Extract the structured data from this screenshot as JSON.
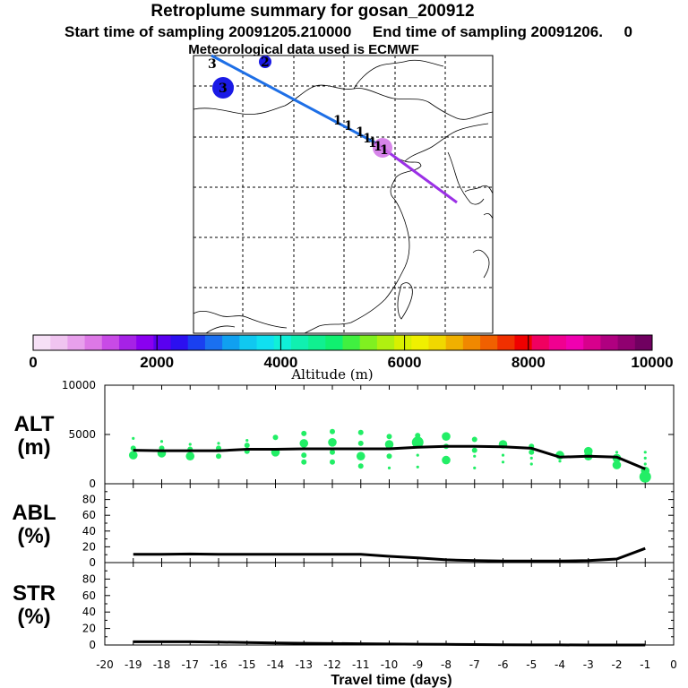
{
  "title": {
    "line1": "Retroplume summary for gosan_200912",
    "line2": "Start time of sampling 20091205.210000     End time of sampling 20091206.     0",
    "line3": "Meteorological data used is ECMWF"
  },
  "colors": {
    "altitude_series": "#22ee66",
    "line": "#000000",
    "traj_blue": "#1e6fe6",
    "traj_purple": "#9b30e6",
    "source_blue": "#1a1ae6"
  },
  "map": {
    "trajectory_labels": [
      "1",
      "1",
      "1",
      "1",
      "1",
      "1",
      "1"
    ],
    "source_labels": [
      "3",
      "2",
      "3"
    ]
  },
  "colorbar": {
    "label": "Altitude (m)",
    "tick_labels": [
      "0",
      "2000",
      "4000",
      "6000",
      "8000",
      "10000"
    ],
    "colors": [
      "#f6e0f6",
      "#f0c4f0",
      "#e8a0ec",
      "#dd78e6",
      "#c84ae6",
      "#a622e6",
      "#8a00f0",
      "#5a00f0",
      "#2c10f0",
      "#1a40f0",
      "#1a70f0",
      "#10a0f0",
      "#10c8f0",
      "#10e0f0",
      "#10f0d8",
      "#10f0b0",
      "#10f090",
      "#10f070",
      "#40f040",
      "#80f020",
      "#b0f010",
      "#d8f000",
      "#f0f000",
      "#f0d800",
      "#f0b000",
      "#f08800",
      "#f06000",
      "#f03000",
      "#f00000",
      "#f00060",
      "#f00090",
      "#f000b0",
      "#d8008c",
      "#b00080",
      "#900070",
      "#700060"
    ]
  },
  "charts": [
    {
      "type": "scatter",
      "name": "ALT",
      "ylabel_line1": "ALT",
      "ylabel_line2": "(m)",
      "ylim": [
        0,
        10000
      ],
      "ytick_labels": [
        "10000",
        "5000",
        "0"
      ],
      "xlim": [
        -20,
        0
      ],
      "line_x": [
        -19,
        -18,
        -17,
        -16,
        -15,
        -14,
        -13,
        -12,
        -11,
        -10,
        -9,
        -8,
        -7,
        -6,
        -5,
        -4,
        -3,
        -2,
        -1
      ],
      "line_y": [
        3400,
        3350,
        3350,
        3350,
        3500,
        3500,
        3550,
        3550,
        3550,
        3550,
        3700,
        3800,
        3800,
        3750,
        3600,
        2700,
        2800,
        2700,
        1500
      ],
      "points": [
        {
          "x": -19,
          "y": 4600,
          "s": 1
        },
        {
          "x": -19,
          "y": 3600,
          "s": 2
        },
        {
          "x": -19,
          "y": 2900,
          "s": 3
        },
        {
          "x": -18,
          "y": 4300,
          "s": 1
        },
        {
          "x": -18,
          "y": 3600,
          "s": 2
        },
        {
          "x": -18,
          "y": 3100,
          "s": 3
        },
        {
          "x": -17,
          "y": 4000,
          "s": 1
        },
        {
          "x": -17,
          "y": 3500,
          "s": 2
        },
        {
          "x": -17,
          "y": 2800,
          "s": 3
        },
        {
          "x": -16,
          "y": 4100,
          "s": 1
        },
        {
          "x": -16,
          "y": 3600,
          "s": 2
        },
        {
          "x": -16,
          "y": 2800,
          "s": 2
        },
        {
          "x": -15,
          "y": 4400,
          "s": 1
        },
        {
          "x": -15,
          "y": 3900,
          "s": 2
        },
        {
          "x": -15,
          "y": 3300,
          "s": 2
        },
        {
          "x": -14,
          "y": 4700,
          "s": 2
        },
        {
          "x": -14,
          "y": 3200,
          "s": 3
        },
        {
          "x": -13,
          "y": 5100,
          "s": 2
        },
        {
          "x": -13,
          "y": 4100,
          "s": 3
        },
        {
          "x": -13,
          "y": 2900,
          "s": 2
        },
        {
          "x": -13,
          "y": 2200,
          "s": 2
        },
        {
          "x": -12,
          "y": 5300,
          "s": 2
        },
        {
          "x": -12,
          "y": 4200,
          "s": 3
        },
        {
          "x": -12,
          "y": 3200,
          "s": 2
        },
        {
          "x": -12,
          "y": 2200,
          "s": 2
        },
        {
          "x": -11,
          "y": 5200,
          "s": 2
        },
        {
          "x": -11,
          "y": 4100,
          "s": 2
        },
        {
          "x": -11,
          "y": 2800,
          "s": 3
        },
        {
          "x": -11,
          "y": 1800,
          "s": 2
        },
        {
          "x": -10,
          "y": 4800,
          "s": 2
        },
        {
          "x": -10,
          "y": 4000,
          "s": 3
        },
        {
          "x": -10,
          "y": 2800,
          "s": 2
        },
        {
          "x": -10,
          "y": 1600,
          "s": 1
        },
        {
          "x": -9,
          "y": 4900,
          "s": 2
        },
        {
          "x": -9,
          "y": 4200,
          "s": 4
        },
        {
          "x": -9,
          "y": 2900,
          "s": 1
        },
        {
          "x": -9,
          "y": 1700,
          "s": 1
        },
        {
          "x": -8,
          "y": 4800,
          "s": 3
        },
        {
          "x": -8,
          "y": 3800,
          "s": 2
        },
        {
          "x": -8,
          "y": 2400,
          "s": 3
        },
        {
          "x": -7,
          "y": 4500,
          "s": 2
        },
        {
          "x": -7,
          "y": 3400,
          "s": 2
        },
        {
          "x": -7,
          "y": 2800,
          "s": 1
        },
        {
          "x": -7,
          "y": 1600,
          "s": 1
        },
        {
          "x": -6,
          "y": 4000,
          "s": 3
        },
        {
          "x": -6,
          "y": 2900,
          "s": 1
        },
        {
          "x": -6,
          "y": 2200,
          "s": 1
        },
        {
          "x": -5,
          "y": 3800,
          "s": 2
        },
        {
          "x": -5,
          "y": 3200,
          "s": 2
        },
        {
          "x": -5,
          "y": 2600,
          "s": 1
        },
        {
          "x": -5,
          "y": 2000,
          "s": 1
        },
        {
          "x": -4,
          "y": 2900,
          "s": 3
        },
        {
          "x": -4,
          "y": 2300,
          "s": 1
        },
        {
          "x": -3,
          "y": 3300,
          "s": 3
        },
        {
          "x": -3,
          "y": 2800,
          "s": 3
        },
        {
          "x": -2,
          "y": 3200,
          "s": 1
        },
        {
          "x": -2,
          "y": 2600,
          "s": 3
        },
        {
          "x": -2,
          "y": 1900,
          "s": 3
        },
        {
          "x": -1,
          "y": 3200,
          "s": 1
        },
        {
          "x": -1,
          "y": 2600,
          "s": 1
        },
        {
          "x": -1,
          "y": 2000,
          "s": 1
        },
        {
          "x": -1,
          "y": 1300,
          "s": 3
        },
        {
          "x": -1,
          "y": 700,
          "s": 4
        }
      ]
    },
    {
      "type": "line",
      "name": "ABL",
      "ylabel_line1": "ABL",
      "ylabel_line2": "(%)",
      "ylim": [
        0,
        100
      ],
      "ytick_labels": [
        "80",
        "60",
        "40",
        "20",
        "0"
      ],
      "xlim": [
        -20,
        0
      ],
      "x": [
        -19,
        -18,
        -17,
        -16,
        -15,
        -14,
        -13,
        -12,
        -11,
        -10,
        -9,
        -8,
        -7,
        -6,
        -5,
        -4,
        -3,
        -2,
        -1
      ],
      "y": [
        10.5,
        10.5,
        11,
        10.5,
        10.5,
        10.5,
        10.5,
        10.5,
        10.5,
        8,
        6,
        3.5,
        2.5,
        2,
        2,
        2,
        2.5,
        4.5,
        18
      ]
    },
    {
      "type": "line",
      "name": "STR",
      "ylabel_line1": "STR",
      "ylabel_line2": "(%)",
      "ylim": [
        0,
        100
      ],
      "ytick_labels": [
        "80",
        "60",
        "40",
        "20",
        "0"
      ],
      "xlim": [
        -20,
        0
      ],
      "x": [
        -19,
        -18,
        -17,
        -16,
        -15,
        -14,
        -13,
        -12,
        -11,
        -10,
        -9,
        -8,
        -7,
        -6,
        -5,
        -4,
        -3,
        -2,
        -1
      ],
      "y": [
        4,
        4,
        4,
        3.5,
        3,
        2.5,
        2,
        1.8,
        1.5,
        1.2,
        1,
        0.8,
        0.5,
        0.3,
        0.2,
        0.1,
        0,
        0,
        0
      ]
    }
  ],
  "xaxis": {
    "label": "Travel time (days)",
    "tick_labels": [
      "-20",
      "-19",
      "-18",
      "-17",
      "-16",
      "-15",
      "-14",
      "-13",
      "-12",
      "-11",
      "-10",
      "-9",
      "-8",
      "-7",
      "-6",
      "-5",
      "-4",
      "-3",
      "-2",
      "-1",
      "0"
    ]
  }
}
